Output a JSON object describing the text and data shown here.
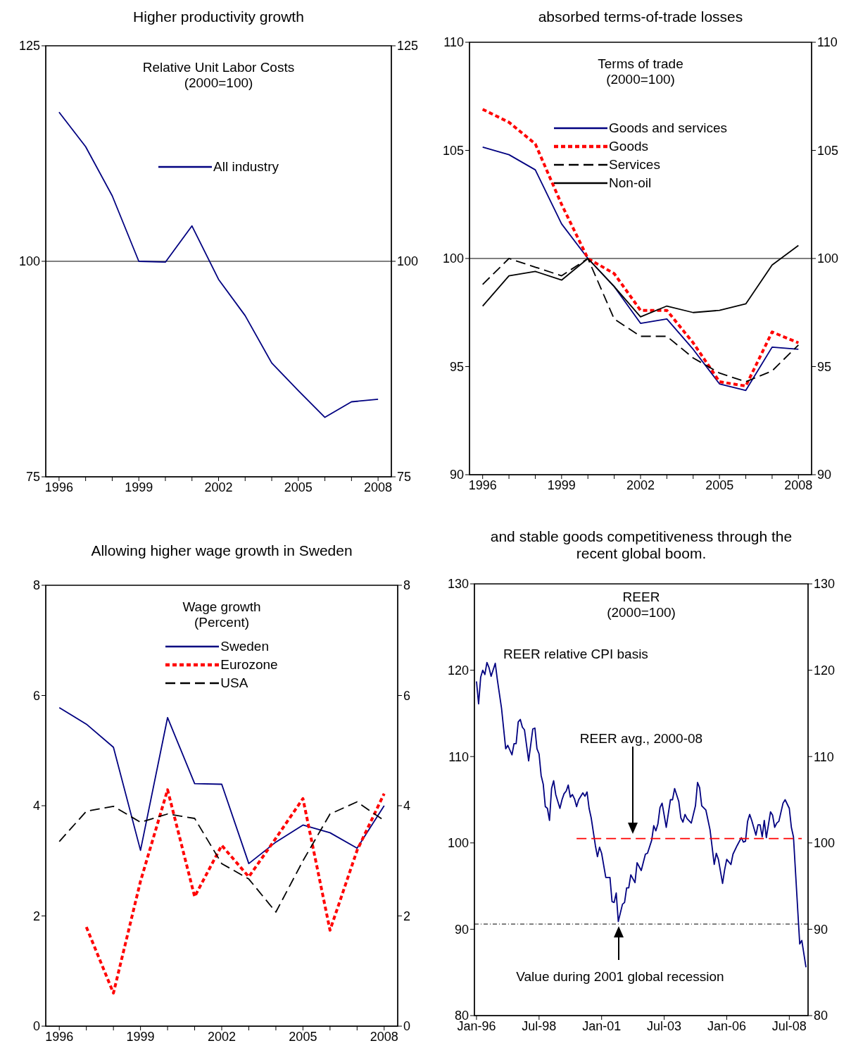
{
  "chart_data": [
    {
      "type": "line",
      "title": "Higher productivity growth",
      "legend_title": "Relative Unit Labor Costs\n(2000=100)",
      "legend": "top",
      "x": [
        1996,
        1997,
        1998,
        1999,
        2000,
        2001,
        2002,
        2003,
        2004,
        2005,
        2006,
        2007,
        2008
      ],
      "series": [
        {
          "name": "All industry",
          "color": "#000080",
          "values": [
            117.3,
            113.3,
            107.6,
            100.0,
            99.9,
            104.1,
            97.9,
            93.7,
            88.2,
            85.0,
            81.9,
            83.7,
            84.0
          ]
        }
      ],
      "xlim": [
        1995.5,
        2008.5
      ],
      "xticks": [
        1996,
        {
          "value": 1997,
          "label": null
        },
        {
          "value": 1998,
          "label": null
        },
        1999,
        {
          "value": 2000,
          "label": null
        },
        {
          "value": 2001,
          "label": null
        },
        2002,
        {
          "value": 2003,
          "label": null
        },
        {
          "value": 2004,
          "label": null
        },
        2005,
        {
          "value": 2006,
          "label": null
        },
        {
          "value": 2007,
          "label": null
        },
        2008
      ],
      "ylim": [
        75,
        125
      ],
      "yticks": [
        75,
        100,
        125
      ],
      "y2lim": [
        75,
        125
      ],
      "y2ticks": [
        75,
        100,
        125
      ],
      "ref_lines": [
        {
          "axis": "y",
          "value": 100,
          "color": "#000000"
        }
      ]
    },
    {
      "type": "line",
      "title": "absorbed terms-of-trade losses",
      "legend_title": "Terms of trade\n(2000=100)",
      "legend": "top",
      "x": [
        1996,
        1997,
        1998,
        1999,
        2000,
        2001,
        2002,
        2003,
        2004,
        2005,
        2006,
        2007,
        2008
      ],
      "series": [
        {
          "name": "Goods and services",
          "color": "#000080",
          "values": [
            105.15,
            104.8,
            104.1,
            101.6,
            100.0,
            98.7,
            97.0,
            97.2,
            95.8,
            94.2,
            93.9,
            95.9,
            95.8
          ]
        },
        {
          "name": "Goods",
          "color": "#ff0000",
          "line_style": "dotted",
          "values": [
            106.9,
            106.3,
            105.3,
            102.5,
            100.0,
            99.3,
            97.6,
            97.6,
            96.1,
            94.3,
            94.1,
            96.6,
            96.1
          ]
        },
        {
          "name": "Services",
          "color": "#000000",
          "line_style": "dashed",
          "values": [
            98.8,
            100.0,
            99.6,
            99.2,
            100.0,
            97.2,
            96.4,
            96.4,
            95.4,
            94.7,
            94.3,
            94.8,
            96.0
          ]
        },
        {
          "name": "Non-oil",
          "color": "#000000",
          "values": [
            97.8,
            99.2,
            99.4,
            99.0,
            100.0,
            98.7,
            97.3,
            97.8,
            97.5,
            97.6,
            97.9,
            99.7,
            100.6
          ]
        }
      ],
      "xlim": [
        1995.5,
        2008.5
      ],
      "xticks": [
        1996,
        {
          "value": 1997,
          "label": null
        },
        {
          "value": 1998,
          "label": null
        },
        1999,
        {
          "value": 2000,
          "label": null
        },
        {
          "value": 2001,
          "label": null
        },
        2002,
        {
          "value": 2003,
          "label": null
        },
        {
          "value": 2004,
          "label": null
        },
        2005,
        {
          "value": 2006,
          "label": null
        },
        {
          "value": 2007,
          "label": null
        },
        2008
      ],
      "ylim": [
        90,
        110
      ],
      "yticks": [
        90,
        95,
        100,
        105,
        110
      ],
      "y2lim": [
        90,
        110
      ],
      "y2ticks": [
        90,
        95,
        100,
        105,
        110
      ],
      "ref_lines": [
        {
          "axis": "y",
          "value": 100,
          "color": "#000000"
        }
      ]
    },
    {
      "type": "line",
      "title": "Allowing higher wage growth in Sweden",
      "legend_title": "Wage growth\n(Percent)",
      "legend": "top",
      "x": [
        1996,
        1997,
        1998,
        1999,
        2000,
        2001,
        2002,
        2003,
        2004,
        2005,
        2006,
        2007,
        2008
      ],
      "series": [
        {
          "name": "Sweden",
          "color": "#000080",
          "values": [
            5.78,
            5.48,
            5.06,
            3.19,
            5.6,
            4.4,
            4.39,
            2.95,
            3.34,
            3.65,
            3.51,
            3.23,
            4.0
          ]
        },
        {
          "name": "Eurozone",
          "color": "#ff0000",
          "line_style": "dotted",
          "values": [
            null,
            1.8,
            0.6,
            2.63,
            4.29,
            2.35,
            3.28,
            2.71,
            3.41,
            4.13,
            1.74,
            3.19,
            4.22
          ]
        },
        {
          "name": "USA",
          "color": "#000000",
          "line_style": "dashed",
          "values": [
            3.35,
            3.9,
            3.99,
            3.7,
            3.85,
            3.77,
            2.95,
            2.67,
            2.07,
            3.0,
            3.85,
            4.07,
            3.73
          ]
        }
      ],
      "xlim": [
        1995.5,
        2008.5
      ],
      "xticks": [
        1996,
        {
          "value": 1997,
          "label": null
        },
        {
          "value": 1998,
          "label": null
        },
        1999,
        {
          "value": 2000,
          "label": null
        },
        {
          "value": 2001,
          "label": null
        },
        2002,
        {
          "value": 2003,
          "label": null
        },
        {
          "value": 2004,
          "label": null
        },
        2005,
        {
          "value": 2006,
          "label": null
        },
        {
          "value": 2007,
          "label": null
        },
        2008
      ],
      "ylim": [
        0,
        8
      ],
      "yticks": [
        0,
        2,
        4,
        6,
        8
      ],
      "y2lim": [
        0,
        8
      ],
      "y2ticks": [
        0,
        2,
        4,
        6,
        8
      ]
    },
    {
      "type": "line",
      "title": "and stable goods competitiveness through the recent global boom.",
      "annotations": [
        "REER\n(2000=100)",
        "REER avg., 2000-08",
        "Value during 2001 global recession"
      ],
      "x": [
        "1996-01",
        "1996-02",
        "1996-03",
        "1996-04",
        "1996-05",
        "1996-06",
        "1996-07",
        "1996-08",
        "1996-10",
        "1996-11",
        "1997-01",
        "1997-03",
        "1997-04",
        "1997-06",
        "1997-07",
        "1997-08",
        "1997-09",
        "1997-10",
        "1997-11",
        "1997-12",
        "1998-02",
        "1998-04",
        "1998-05",
        "1998-06",
        "1998-07",
        "1998-08",
        "1998-09",
        "1998-10",
        "1998-11",
        "1998-12",
        "1999-01",
        "1999-02",
        "1999-03",
        "1999-04",
        "1999-05",
        "1999-06",
        "1999-07",
        "1999-08",
        "1999-09",
        "1999-10",
        "1999-11",
        "1999-12",
        "2000-01",
        "2000-02",
        "2000-04",
        "2000-05",
        "2000-06",
        "2000-07",
        "2000-08",
        "2000-10",
        "2000-11",
        "2000-12",
        "2001-01",
        "2001-03",
        "2001-05",
        "2001-06",
        "2001-07",
        "2001-08",
        "2001-09",
        "2001-11",
        "2001-12",
        "2002-01",
        "2002-02",
        "2002-03",
        "2002-05",
        "2002-06",
        "2002-08",
        "2002-10",
        "2002-11",
        "2003-01",
        "2003-02",
        "2003-03",
        "2003-04",
        "2003-05",
        "2003-06",
        "2003-08",
        "2003-10",
        "2003-11",
        "2003-12",
        "2004-02",
        "2004-03",
        "2004-04",
        "2004-05",
        "2004-06",
        "2004-08",
        "2004-10",
        "2004-11",
        "2004-12",
        "2005-01",
        "2005-03",
        "2005-05",
        "2005-07",
        "2005-08",
        "2005-09",
        "2005-11",
        "2005-12",
        "2006-01",
        "2006-03",
        "2006-04",
        "2006-06",
        "2006-08",
        "2006-09",
        "2006-10",
        "2006-11",
        "2006-12",
        "2007-01",
        "2007-03",
        "2007-04",
        "2007-05",
        "2007-06",
        "2007-07",
        "2007-08",
        "2007-10",
        "2007-11",
        "2007-12",
        "2008-01",
        "2008-02",
        "2008-04",
        "2008-05",
        "2008-07",
        "2008-08",
        "2008-09",
        "2008-12",
        "2009-01",
        "2009-03"
      ],
      "series": [
        {
          "name": "REER relative CPI basis",
          "color": "#000080",
          "values": [
            118.7,
            116.1,
            119.2,
            120.0,
            119.5,
            120.9,
            120.3,
            119.3,
            120.8,
            118.9,
            115.6,
            110.9,
            111.3,
            110.2,
            111.5,
            111.5,
            114.0,
            114.3,
            113.4,
            113.1,
            109.5,
            113.2,
            113.3,
            110.9,
            110.3,
            107.8,
            106.8,
            104.2,
            104.0,
            102.6,
            106.3,
            107.2,
            105.6,
            104.8,
            104.0,
            105.0,
            105.7,
            106.0,
            106.7,
            105.3,
            105.6,
            105.1,
            104.2,
            105.0,
            105.8,
            105.4,
            105.9,
            104.0,
            102.9,
            99.7,
            98.4,
            99.5,
            98.8,
            96.0,
            96.0,
            93.2,
            93.1,
            94.2,
            90.9,
            92.9,
            93.1,
            94.8,
            94.8,
            96.3,
            95.4,
            97.7,
            96.8,
            98.7,
            98.8,
            100.3,
            102.0,
            101.4,
            102.2,
            104.1,
            104.6,
            101.8,
            105.0,
            105.0,
            106.3,
            104.8,
            102.9,
            102.4,
            103.3,
            102.8,
            102.3,
            104.3,
            107.0,
            106.4,
            104.3,
            103.8,
            101.5,
            97.5,
            98.8,
            98.1,
            95.3,
            96.9,
            98.1,
            97.5,
            98.7,
            99.7,
            100.6,
            100.1,
            100.2,
            102.5,
            103.3,
            102.6,
            100.9,
            102.1,
            102.1,
            100.7,
            102.6,
            100.6,
            103.6,
            103.2,
            101.8,
            102.3,
            102.5,
            104.6,
            105.0,
            104.0,
            101.8,
            100.7,
            88.3,
            88.7,
            85.6
          ]
        },
        {
          "type": "line",
          "color": "#ff0000",
          "line_style": "dashed",
          "x": [
            "2000-01",
            "2009-01"
          ],
          "values": [
            100.5,
            100.5
          ]
        }
      ],
      "xlim": [
        "1995-12",
        "2009-04"
      ],
      "xticks": [
        {
          "value": "1996-01",
          "label": "Jan-96"
        },
        {
          "value": "1998-07",
          "label": "Jul-98"
        },
        {
          "value": "2001-01",
          "label": "Jan-01"
        },
        {
          "value": "2003-07",
          "label": "Jul-03"
        },
        {
          "value": "2006-01",
          "label": "Jan-06"
        },
        {
          "value": "2008-07",
          "label": "Jul-08"
        }
      ],
      "ylim": [
        80,
        130
      ],
      "yticks": [
        80,
        90,
        100,
        110,
        120,
        130
      ],
      "y2lim": [
        80,
        130
      ],
      "y2ticks": [
        80,
        90,
        100,
        110,
        120,
        130
      ],
      "ref_lines": [
        {
          "axis": "y",
          "value": 90.6,
          "color": "#000000",
          "line_style": "dotted"
        }
      ]
    }
  ]
}
